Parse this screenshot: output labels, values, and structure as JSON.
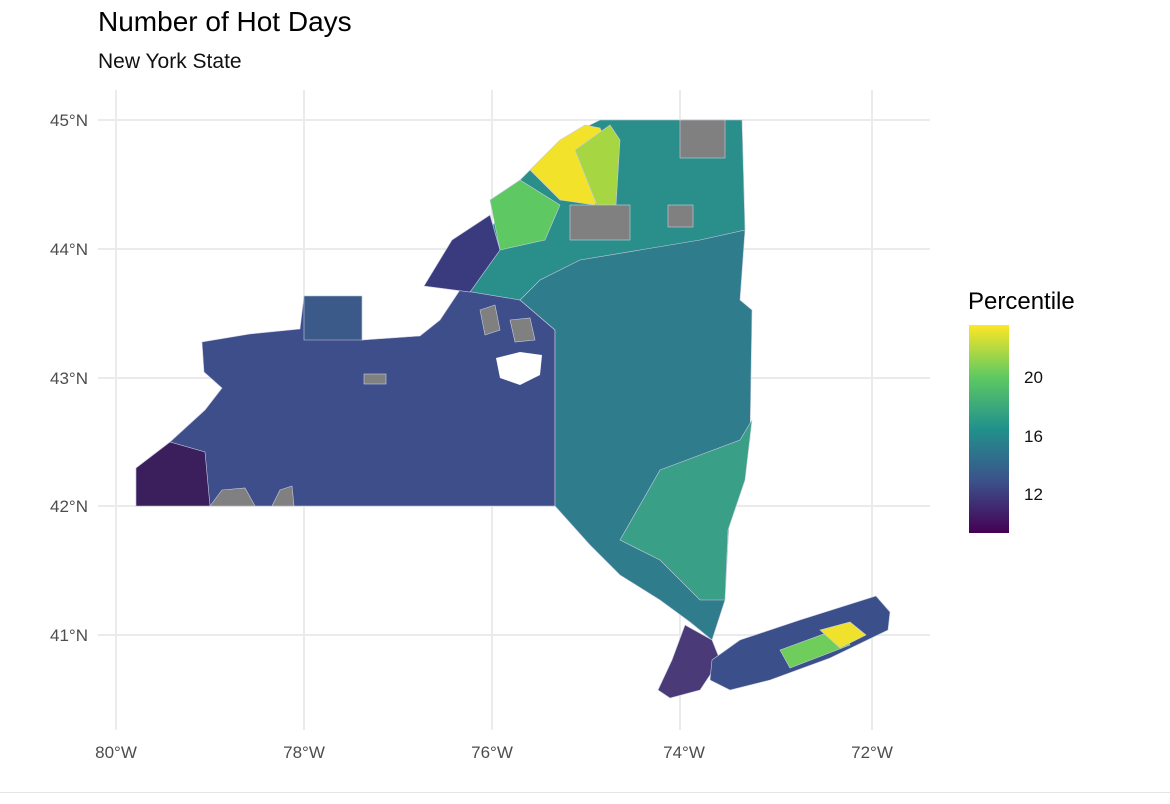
{
  "title": "Number of Hot Days",
  "subtitle": "New York State",
  "axes": {
    "x_ticks": [
      "80°W",
      "78°W",
      "76°W",
      "74°W",
      "72°W"
    ],
    "y_ticks": [
      "45°N",
      "44°N",
      "43°N",
      "42°N",
      "41°N"
    ]
  },
  "legend": {
    "title": "Percentile",
    "labels": [
      "20",
      "16",
      "12"
    ],
    "colors": [
      "#440154",
      "#3b528b",
      "#21918c",
      "#5ec962",
      "#fde725"
    ]
  },
  "map_colors": {
    "background": "#ffffff",
    "grid": "#ebebeb",
    "missing": "#808080",
    "tract_border": "#cfd3e3"
  }
}
